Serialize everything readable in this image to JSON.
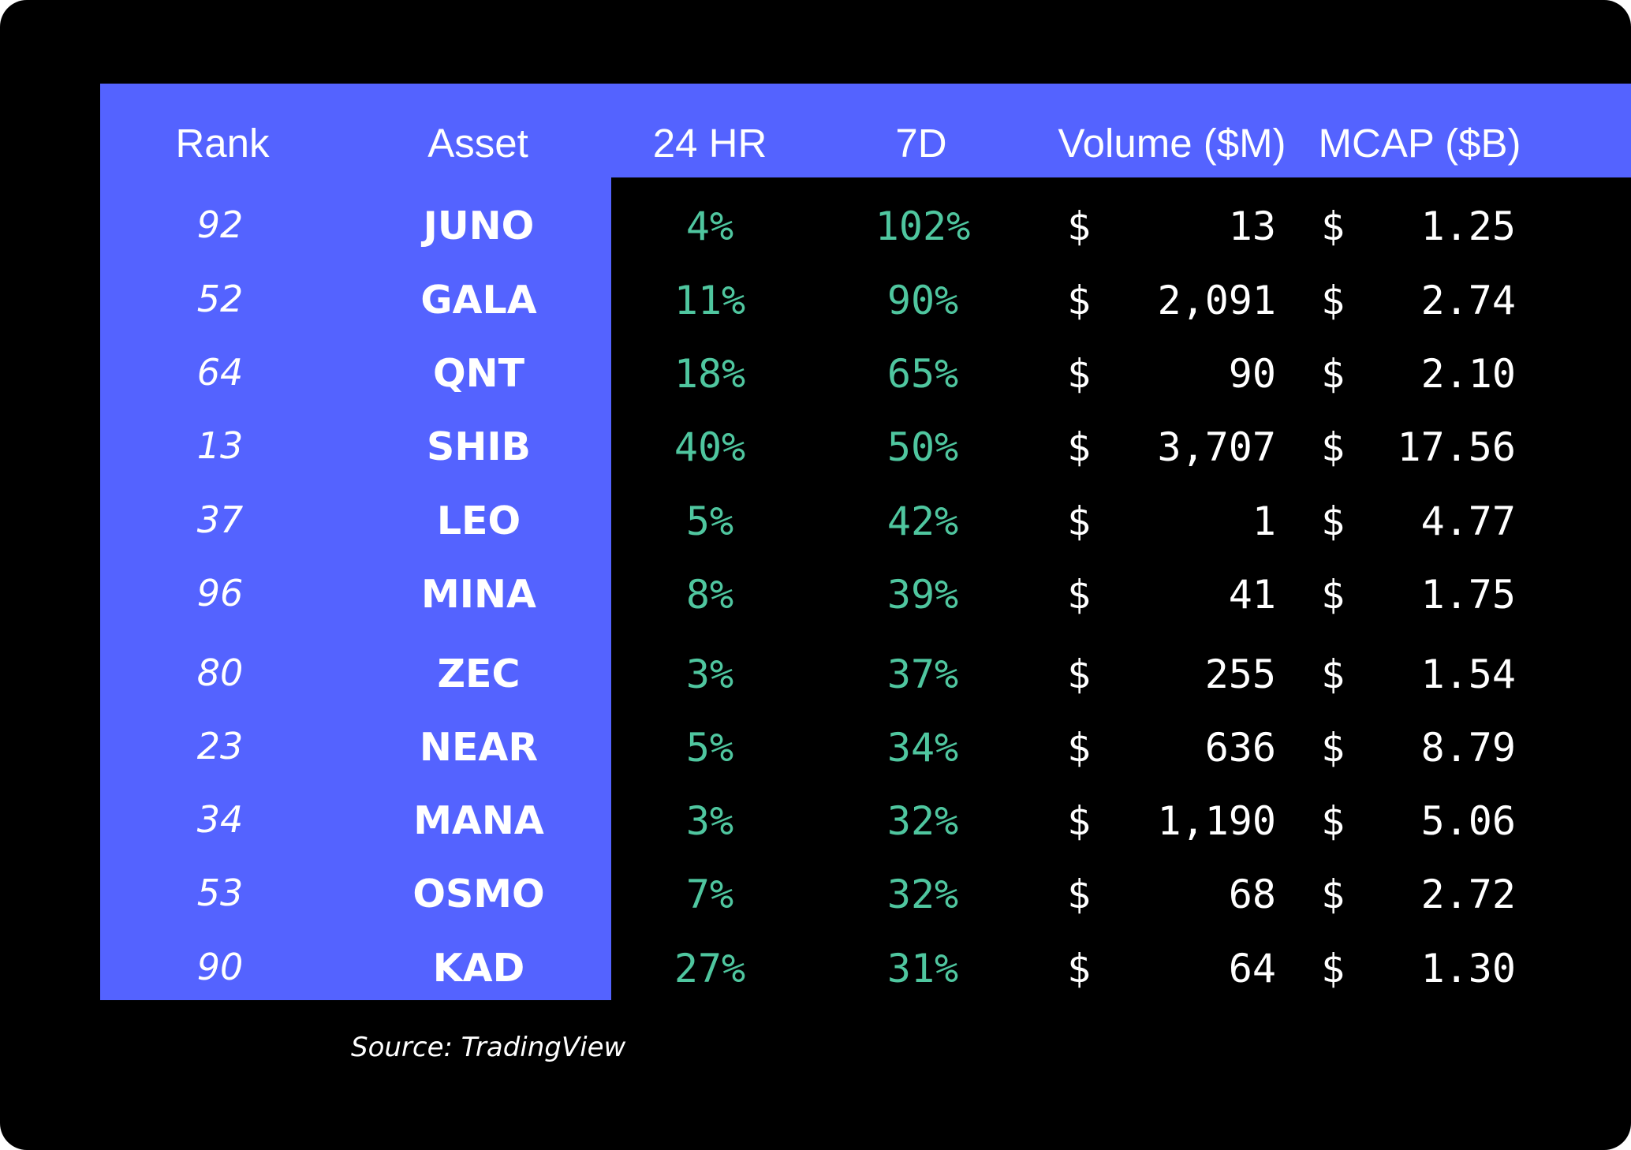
{
  "chart_data": {
    "type": "table",
    "columns": [
      "Rank",
      "Asset",
      "24 HR",
      "7D",
      "Volume ($M)",
      "MCAP ($B)"
    ],
    "rows": [
      {
        "rank": "92",
        "asset": "JUNO",
        "h24": "4%",
        "d7": "102%",
        "vol_sym": "$",
        "volume": "13",
        "mcap_sym": "$",
        "mcap": "1.25"
      },
      {
        "rank": "52",
        "asset": "GALA",
        "h24": "11%",
        "d7": "90%",
        "vol_sym": "$",
        "volume": "2,091",
        "mcap_sym": "$",
        "mcap": "2.74"
      },
      {
        "rank": "64",
        "asset": "QNT",
        "h24": "18%",
        "d7": "65%",
        "vol_sym": "$",
        "volume": "90",
        "mcap_sym": "$",
        "mcap": "2.10"
      },
      {
        "rank": "13",
        "asset": "SHIB",
        "h24": "40%",
        "d7": "50%",
        "vol_sym": "$",
        "volume": "3,707",
        "mcap_sym": "$",
        "mcap": "17.56"
      },
      {
        "rank": "37",
        "asset": "LEO",
        "h24": "5%",
        "d7": "42%",
        "vol_sym": "$",
        "volume": "1",
        "mcap_sym": "$",
        "mcap": "4.77"
      },
      {
        "rank": "96",
        "asset": "MINA",
        "h24": "8%",
        "d7": "39%",
        "vol_sym": "$",
        "volume": "41",
        "mcap_sym": "$",
        "mcap": "1.75"
      },
      {
        "rank": "80",
        "asset": "ZEC",
        "h24": "3%",
        "d7": "37%",
        "vol_sym": "$",
        "volume": "255",
        "mcap_sym": "$",
        "mcap": "1.54"
      },
      {
        "rank": "23",
        "asset": "NEAR",
        "h24": "5%",
        "d7": "34%",
        "vol_sym": "$",
        "volume": "636",
        "mcap_sym": "$",
        "mcap": "8.79"
      },
      {
        "rank": "34",
        "asset": "MANA",
        "h24": "3%",
        "d7": "32%",
        "vol_sym": "$",
        "volume": "1,190",
        "mcap_sym": "$",
        "mcap": "5.06"
      },
      {
        "rank": "53",
        "asset": "OSMO",
        "h24": "7%",
        "d7": "32%",
        "vol_sym": "$",
        "volume": "68",
        "mcap_sym": "$",
        "mcap": "2.72"
      },
      {
        "rank": "90",
        "asset": "KAD",
        "h24": "27%",
        "d7": "31%",
        "vol_sym": "$",
        "volume": "64",
        "mcap_sym": "$",
        "mcap": "1.30"
      }
    ],
    "source": "Source: TradingView",
    "colors": {
      "background": "#000000",
      "band": "#5463ff",
      "percent_text": "#4fc69f",
      "text": "#ffffff"
    }
  }
}
